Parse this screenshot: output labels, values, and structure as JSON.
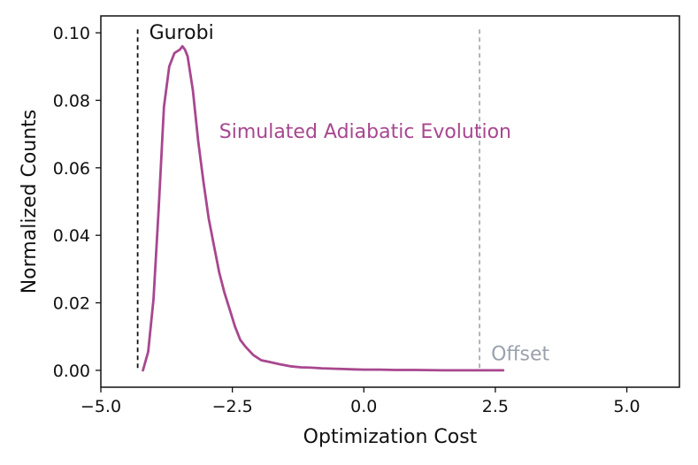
{
  "chart_data": {
    "type": "line",
    "title": "",
    "xlabel": "Optimization Cost",
    "ylabel": "Normalized Counts",
    "xlim": [
      -5.0,
      6.0
    ],
    "ylim": [
      -0.005,
      0.105
    ],
    "grid": false,
    "x_ticks": [
      {
        "value": -5.0,
        "label": "−5.0"
      },
      {
        "value": -2.5,
        "label": "−2.5"
      },
      {
        "value": 0.0,
        "label": "0.0"
      },
      {
        "value": 2.5,
        "label": "2.5"
      },
      {
        "value": 5.0,
        "label": "5.0"
      }
    ],
    "y_ticks": [
      {
        "value": 0.0,
        "label": "0.00"
      },
      {
        "value": 0.02,
        "label": "0.02"
      },
      {
        "value": 0.04,
        "label": "0.04"
      },
      {
        "value": 0.06,
        "label": "0.06"
      },
      {
        "value": 0.08,
        "label": "0.08"
      },
      {
        "value": 0.1,
        "label": "0.10"
      }
    ],
    "series": [
      {
        "name": "Simulated Adiabatic Evolution",
        "color": "#a8478f",
        "x": [
          -4.2,
          -4.1,
          -4.0,
          -3.9,
          -3.8,
          -3.7,
          -3.6,
          -3.5,
          -3.45,
          -3.4,
          -3.35,
          -3.25,
          -3.15,
          -3.05,
          -2.95,
          -2.85,
          -2.75,
          -2.65,
          -2.55,
          -2.45,
          -2.35,
          -2.25,
          -2.1,
          -1.95,
          -1.8,
          -1.6,
          -1.4,
          -1.2,
          -1.0,
          -0.8,
          -0.6,
          -0.4,
          -0.2,
          0.0,
          0.3,
          0.6,
          1.0,
          1.5,
          2.0,
          2.3,
          2.65
        ],
        "y": [
          0.0,
          0.0055,
          0.021,
          0.048,
          0.078,
          0.09,
          0.094,
          0.095,
          0.096,
          0.095,
          0.093,
          0.083,
          0.068,
          0.056,
          0.045,
          0.037,
          0.029,
          0.023,
          0.018,
          0.013,
          0.009,
          0.007,
          0.0045,
          0.003,
          0.0025,
          0.0018,
          0.0012,
          0.0009,
          0.0008,
          0.0006,
          0.0005,
          0.0004,
          0.0003,
          0.0002,
          0.0002,
          0.0001,
          0.0001,
          0.0,
          0.0,
          0.0,
          0.0
        ]
      }
    ],
    "reference_lines": [
      {
        "name": "Gurobi",
        "x": -4.3,
        "color": "#111111",
        "label_color": "#111111"
      },
      {
        "name": "Offset",
        "x": 2.2,
        "color": "#a7adb9",
        "label_color": "#9aa1ad"
      }
    ],
    "annotations": [
      {
        "text": "Simulated Adiabatic Evolution",
        "x": -2.75,
        "y": 0.071,
        "color": "#a8478f"
      }
    ]
  }
}
